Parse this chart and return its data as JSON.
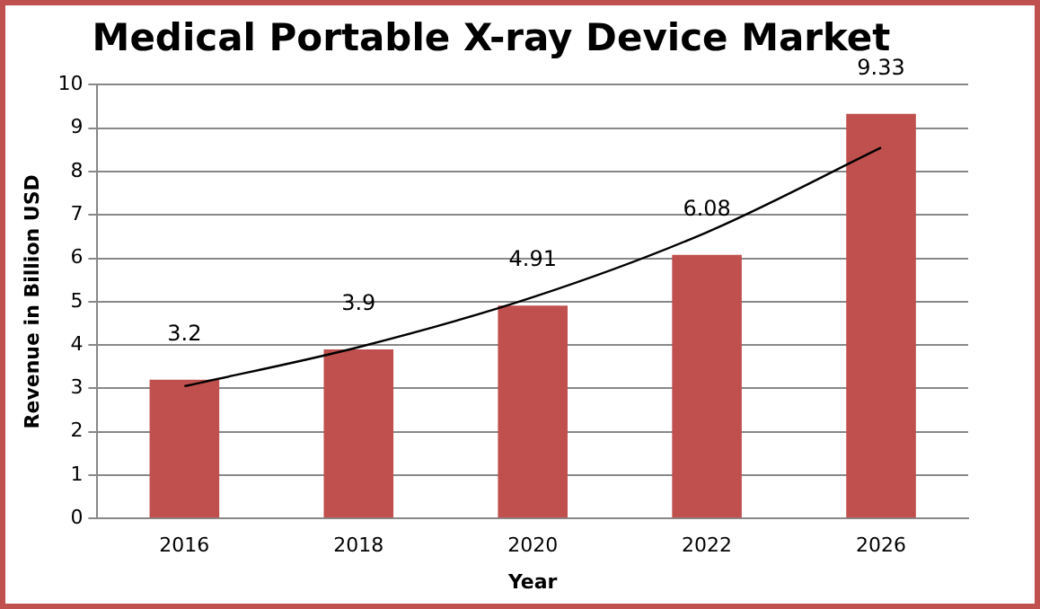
{
  "chart_data": {
    "type": "bar",
    "title": "Medical Portable X-ray Device Market",
    "xlabel": "Year",
    "ylabel": "Revenue in Billion USD",
    "categories": [
      "2016",
      "2018",
      "2020",
      "2022",
      "2026"
    ],
    "series": [
      {
        "type": "bar",
        "color": "#c0504d",
        "values": [
          3.2,
          3.9,
          4.91,
          6.08,
          9.33
        ],
        "value_labels": [
          "3.2",
          "3.9",
          "4.91",
          "6.08",
          "9.33"
        ]
      },
      {
        "type": "line",
        "color": "#000000",
        "values": [
          3.05,
          3.95,
          5.1,
          6.6,
          8.55
        ],
        "marker": "none"
      }
    ],
    "ylim": [
      0,
      10
    ],
    "yticks": [
      0,
      1,
      2,
      3,
      4,
      5,
      6,
      7,
      8,
      9,
      10
    ],
    "grid": "y",
    "legend": false
  }
}
